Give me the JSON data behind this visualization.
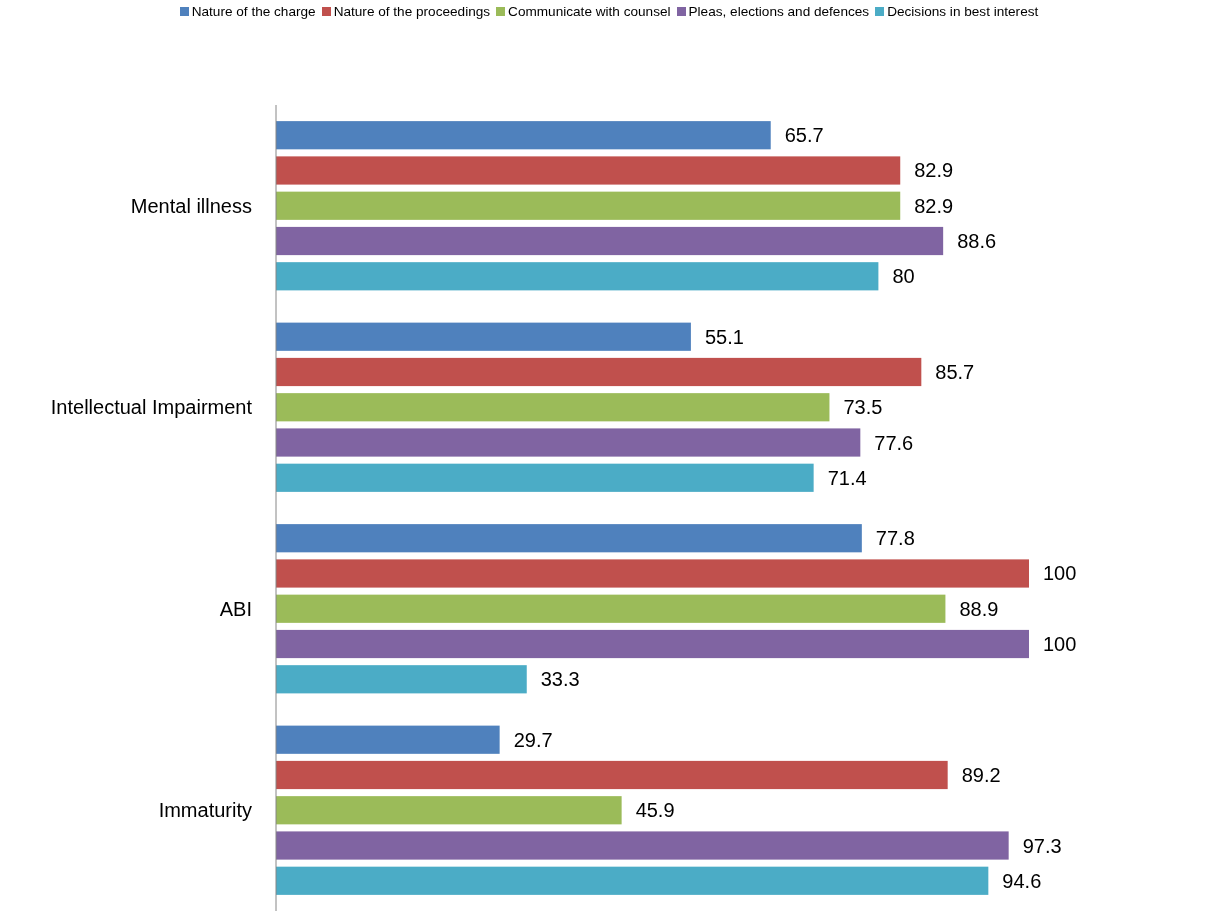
{
  "chart_data": {
    "type": "bar",
    "orientation": "horizontal",
    "categories": [
      "Mental illness",
      "Intellectual Impairment",
      "ABI",
      "Immaturity"
    ],
    "series": [
      {
        "name": "Nature of the charge",
        "color": "#4f81bd",
        "values": [
          65.7,
          55.1,
          77.8,
          29.7
        ]
      },
      {
        "name": "Nature of the proceedings",
        "color": "#c0504d",
        "values": [
          82.9,
          85.7,
          100,
          89.2
        ]
      },
      {
        "name": "Communicate with counsel",
        "color": "#9bbb59",
        "values": [
          82.9,
          73.5,
          88.9,
          45.9
        ]
      },
      {
        "name": "Pleas, elections and defences",
        "color": "#8064a2",
        "values": [
          88.6,
          77.6,
          100,
          97.3
        ]
      },
      {
        "name": "Decisions in best interest",
        "color": "#4bacc6",
        "values": [
          80,
          71.4,
          33.3,
          94.6
        ]
      }
    ],
    "data_labels": true,
    "legend": "top"
  }
}
